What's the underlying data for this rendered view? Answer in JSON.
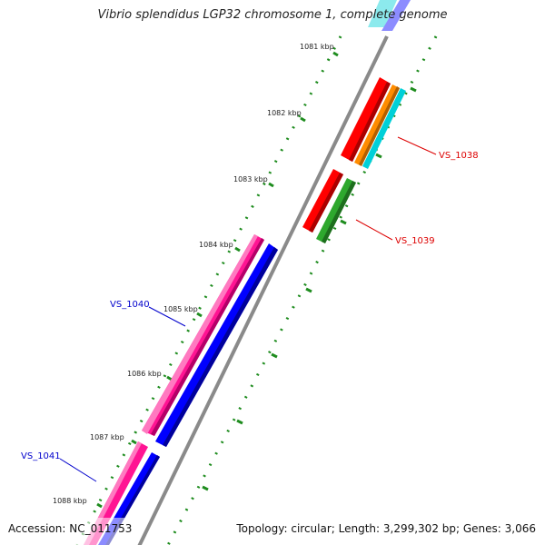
{
  "title": "Vibrio splendidus LGP32 chromosome 1, complete genome",
  "footer": {
    "accession": "Accession: NC_011753",
    "summary": "Topology: circular; Length: 3,299,302 bp; Genes: 3,066"
  },
  "colors": {
    "backbone": "#8a8a8a",
    "tick": "#1e8c1e",
    "tick_label": "#222222",
    "red": "#ff0000",
    "orange": "#ff8c00",
    "cyan": "#00d0d8",
    "green": "#2ea82e",
    "magenta": "#ff1493",
    "blue": "#0000ff",
    "label_red": "#dd0000",
    "label_blue": "#0000cc"
  },
  "ticks": [
    {
      "label": "1081 kbp"
    },
    {
      "label": "1082 kbp"
    },
    {
      "label": "1083 kbp"
    },
    {
      "label": "1084 kbp"
    },
    {
      "label": "1085 kbp"
    },
    {
      "label": "1086 kbp"
    },
    {
      "label": "1087 kbp"
    },
    {
      "label": "1088 kbp"
    }
  ],
  "gene_labels": [
    {
      "id": "VS_1038"
    },
    {
      "id": "VS_1039"
    },
    {
      "id": "VS_1040"
    },
    {
      "id": "VS_1041"
    }
  ]
}
